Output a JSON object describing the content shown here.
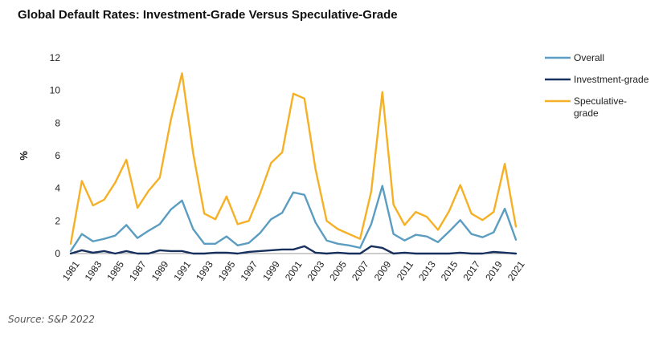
{
  "title": "Global Default Rates: Investment-Grade Versus Speculative-Grade",
  "source": "Source: S&P 2022",
  "chart_data": {
    "type": "line",
    "title": "Global Default Rates: Investment-Grade Versus Speculative-Grade",
    "xlabel": "",
    "ylabel": "%",
    "ylim": [
      0,
      12
    ],
    "yticks": [
      0,
      2,
      4,
      6,
      8,
      10,
      12
    ],
    "x": [
      1981,
      1982,
      1983,
      1984,
      1985,
      1986,
      1987,
      1988,
      1989,
      1990,
      1991,
      1992,
      1993,
      1994,
      1995,
      1996,
      1997,
      1998,
      1999,
      2000,
      2001,
      2002,
      2003,
      2004,
      2005,
      2006,
      2007,
      2008,
      2009,
      2010,
      2011,
      2012,
      2013,
      2014,
      2015,
      2016,
      2017,
      2018,
      2019,
      2020,
      2021
    ],
    "xtick_labels": [
      "1981",
      "1983",
      "1985",
      "1987",
      "1989",
      "1991",
      "1993",
      "1995",
      "1997",
      "1999",
      "2001",
      "2003",
      "2005",
      "2007",
      "2009",
      "2011",
      "2013",
      "2015",
      "2017",
      "2019",
      "2021"
    ],
    "grid": false,
    "legend_position": "right",
    "series": [
      {
        "name": "Overall",
        "color": "#5b9dc0",
        "values": [
          0.15,
          1.2,
          0.75,
          0.9,
          1.1,
          1.75,
          0.95,
          1.4,
          1.8,
          2.7,
          3.25,
          1.5,
          0.6,
          0.6,
          1.05,
          0.5,
          0.65,
          1.25,
          2.1,
          2.5,
          3.75,
          3.6,
          1.9,
          0.8,
          0.6,
          0.5,
          0.35,
          1.8,
          4.15,
          1.2,
          0.8,
          1.15,
          1.05,
          0.7,
          1.35,
          2.05,
          1.2,
          1.0,
          1.3,
          2.75,
          0.85
        ]
      },
      {
        "name": "Investment-grade",
        "color": "#17305e",
        "values": [
          0.0,
          0.2,
          0.05,
          0.15,
          0.0,
          0.15,
          0.0,
          0.0,
          0.2,
          0.15,
          0.15,
          0.0,
          0.0,
          0.05,
          0.05,
          0.0,
          0.1,
          0.15,
          0.2,
          0.25,
          0.25,
          0.45,
          0.05,
          0.0,
          0.05,
          0.0,
          0.0,
          0.45,
          0.35,
          0.0,
          0.05,
          0.0,
          0.0,
          0.0,
          0.0,
          0.05,
          0.0,
          0.0,
          0.1,
          0.05,
          0.0
        ]
      },
      {
        "name": "Speculative-grade",
        "legend_lines": [
          "Speculative-",
          "grade"
        ],
        "color": "#f5b025",
        "values": [
          0.6,
          4.45,
          2.95,
          3.3,
          4.35,
          5.75,
          2.8,
          3.85,
          4.65,
          8.2,
          11.05,
          6.15,
          2.45,
          2.1,
          3.5,
          1.8,
          2.0,
          3.65,
          5.55,
          6.2,
          9.8,
          9.5,
          5.15,
          2.0,
          1.5,
          1.2,
          0.9,
          3.8,
          9.9,
          3.0,
          1.75,
          2.55,
          2.25,
          1.45,
          2.6,
          4.2,
          2.45,
          2.05,
          2.55,
          5.5,
          1.65
        ]
      }
    ]
  }
}
